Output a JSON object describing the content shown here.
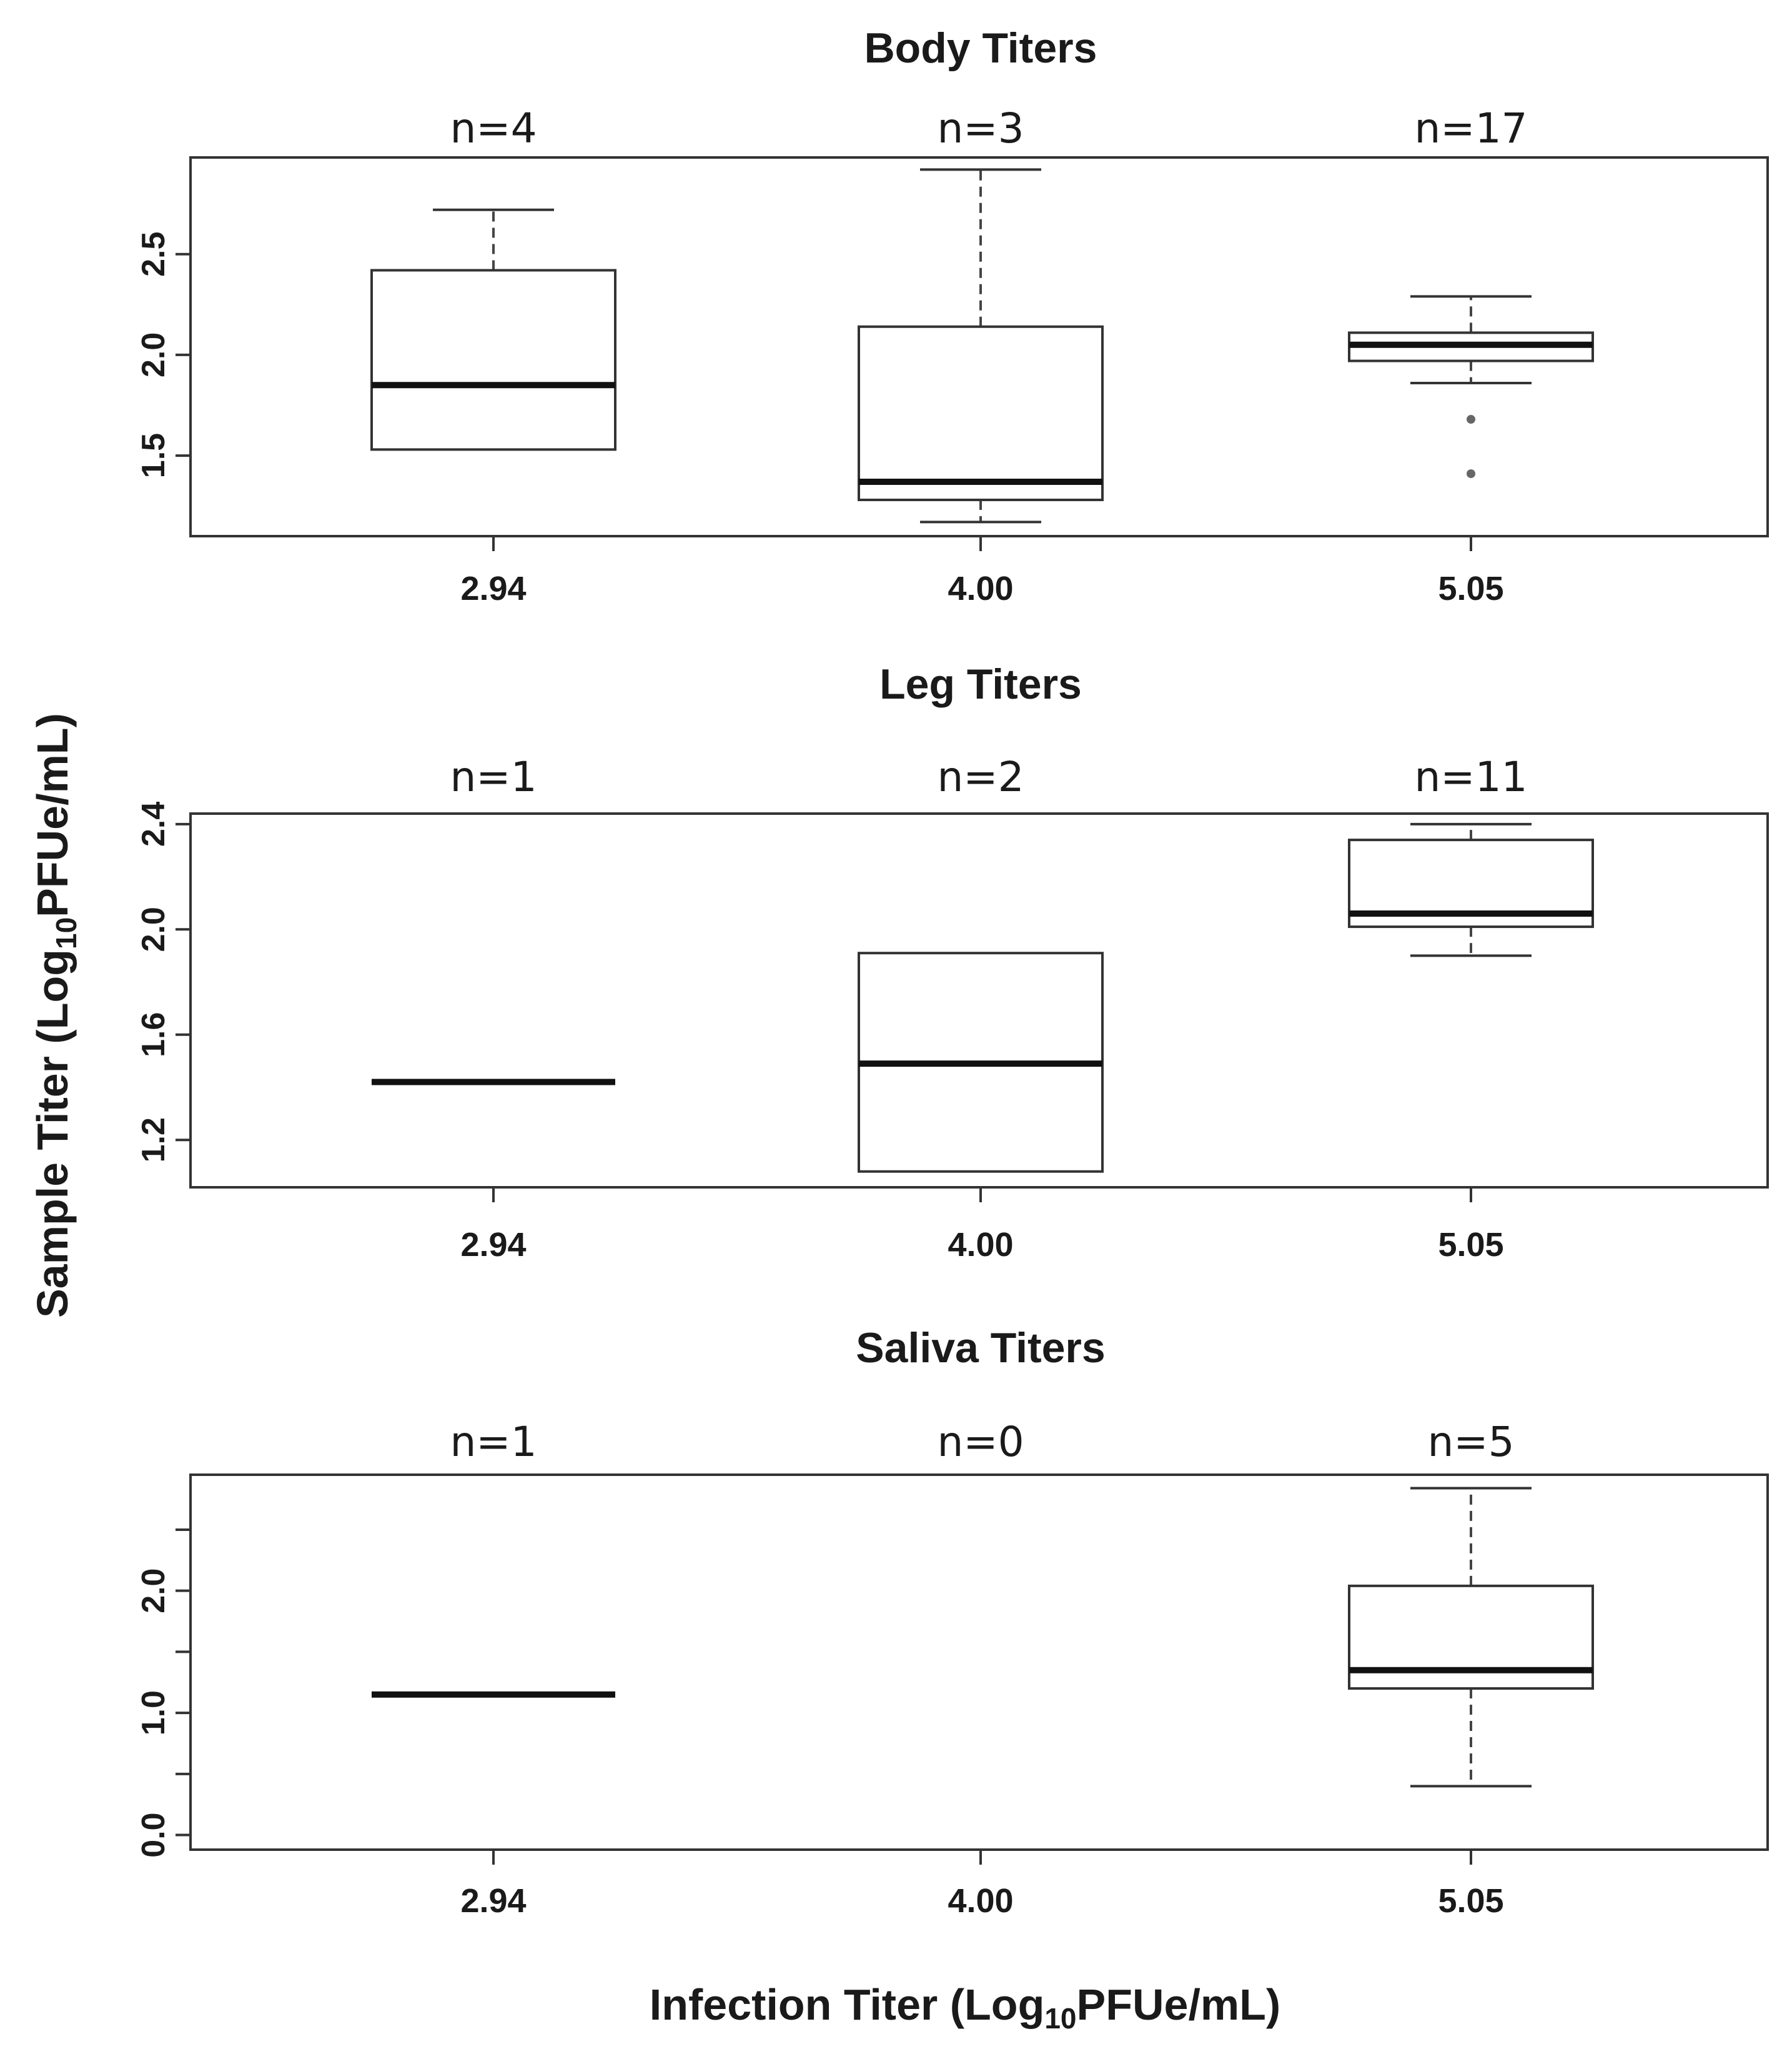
{
  "chart_data": [
    {
      "type": "boxplot",
      "title": "Body Titers",
      "categories": [
        "2.94",
        "4.00",
        "5.05"
      ],
      "n_labels": [
        "n=4",
        "n=3",
        "n=17"
      ],
      "ylim": [
        1.1,
        2.98
      ],
      "yticks": [
        1.5,
        2.0,
        2.5
      ],
      "ytick_labels": [
        "1.5",
        "2.0",
        "2.5"
      ],
      "boxes": [
        {
          "whisker_low": 1.53,
          "q1": 1.53,
          "median": 1.85,
          "q3": 2.42,
          "whisker_high": 2.72,
          "outliers": []
        },
        {
          "whisker_low": 1.17,
          "q1": 1.28,
          "median": 1.37,
          "q3": 2.14,
          "whisker_high": 2.92,
          "outliers": []
        },
        {
          "whisker_low": 1.86,
          "q1": 1.97,
          "median": 2.05,
          "q3": 2.11,
          "whisker_high": 2.29,
          "outliers": [
            1.68,
            1.41
          ]
        }
      ]
    },
    {
      "type": "boxplot",
      "title": "Leg Titers",
      "categories": [
        "2.94",
        "4.00",
        "5.05"
      ],
      "n_labels": [
        "n=1",
        "n=2",
        "n=11"
      ],
      "ylim": [
        1.02,
        2.44
      ],
      "yticks": [
        1.2,
        1.6,
        2.0,
        2.4
      ],
      "ytick_labels": [
        "1.2",
        "1.6",
        "2.0",
        "2.4"
      ],
      "boxes": [
        {
          "whisker_low": 1.42,
          "q1": 1.42,
          "median": 1.42,
          "q3": 1.42,
          "whisker_high": 1.42,
          "outliers": []
        },
        {
          "whisker_low": 1.08,
          "q1": 1.08,
          "median": 1.49,
          "q3": 1.91,
          "whisker_high": 1.91,
          "outliers": []
        },
        {
          "whisker_low": 1.9,
          "q1": 2.01,
          "median": 2.06,
          "q3": 2.34,
          "whisker_high": 2.4,
          "outliers": []
        }
      ]
    },
    {
      "type": "boxplot",
      "title": "Saliva Titers",
      "categories": [
        "2.94",
        "4.00",
        "5.05"
      ],
      "n_labels": [
        "n=1",
        "n=0",
        "n=5"
      ],
      "ylim": [
        -0.12,
        2.95
      ],
      "yticks": [
        0.0,
        0.5,
        1.0,
        1.5,
        2.0,
        2.5
      ],
      "ytick_labels": [
        "0.0",
        "",
        "1.0",
        "",
        "2.0",
        ""
      ],
      "boxes": [
        {
          "whisker_low": 1.15,
          "q1": 1.15,
          "median": 1.15,
          "q3": 1.15,
          "whisker_high": 1.15,
          "outliers": []
        },
        null,
        {
          "whisker_low": 0.4,
          "q1": 1.2,
          "median": 1.35,
          "q3": 2.04,
          "whisker_high": 2.84,
          "outliers": []
        }
      ]
    }
  ],
  "ylabel": {
    "main": "Sample Titer (Log",
    "sub": "10",
    "rest": "PFUe/mL)"
  },
  "xlabel": {
    "main": "Infection Titer (Log",
    "sub": "10",
    "rest": "PFUe/mL)"
  }
}
